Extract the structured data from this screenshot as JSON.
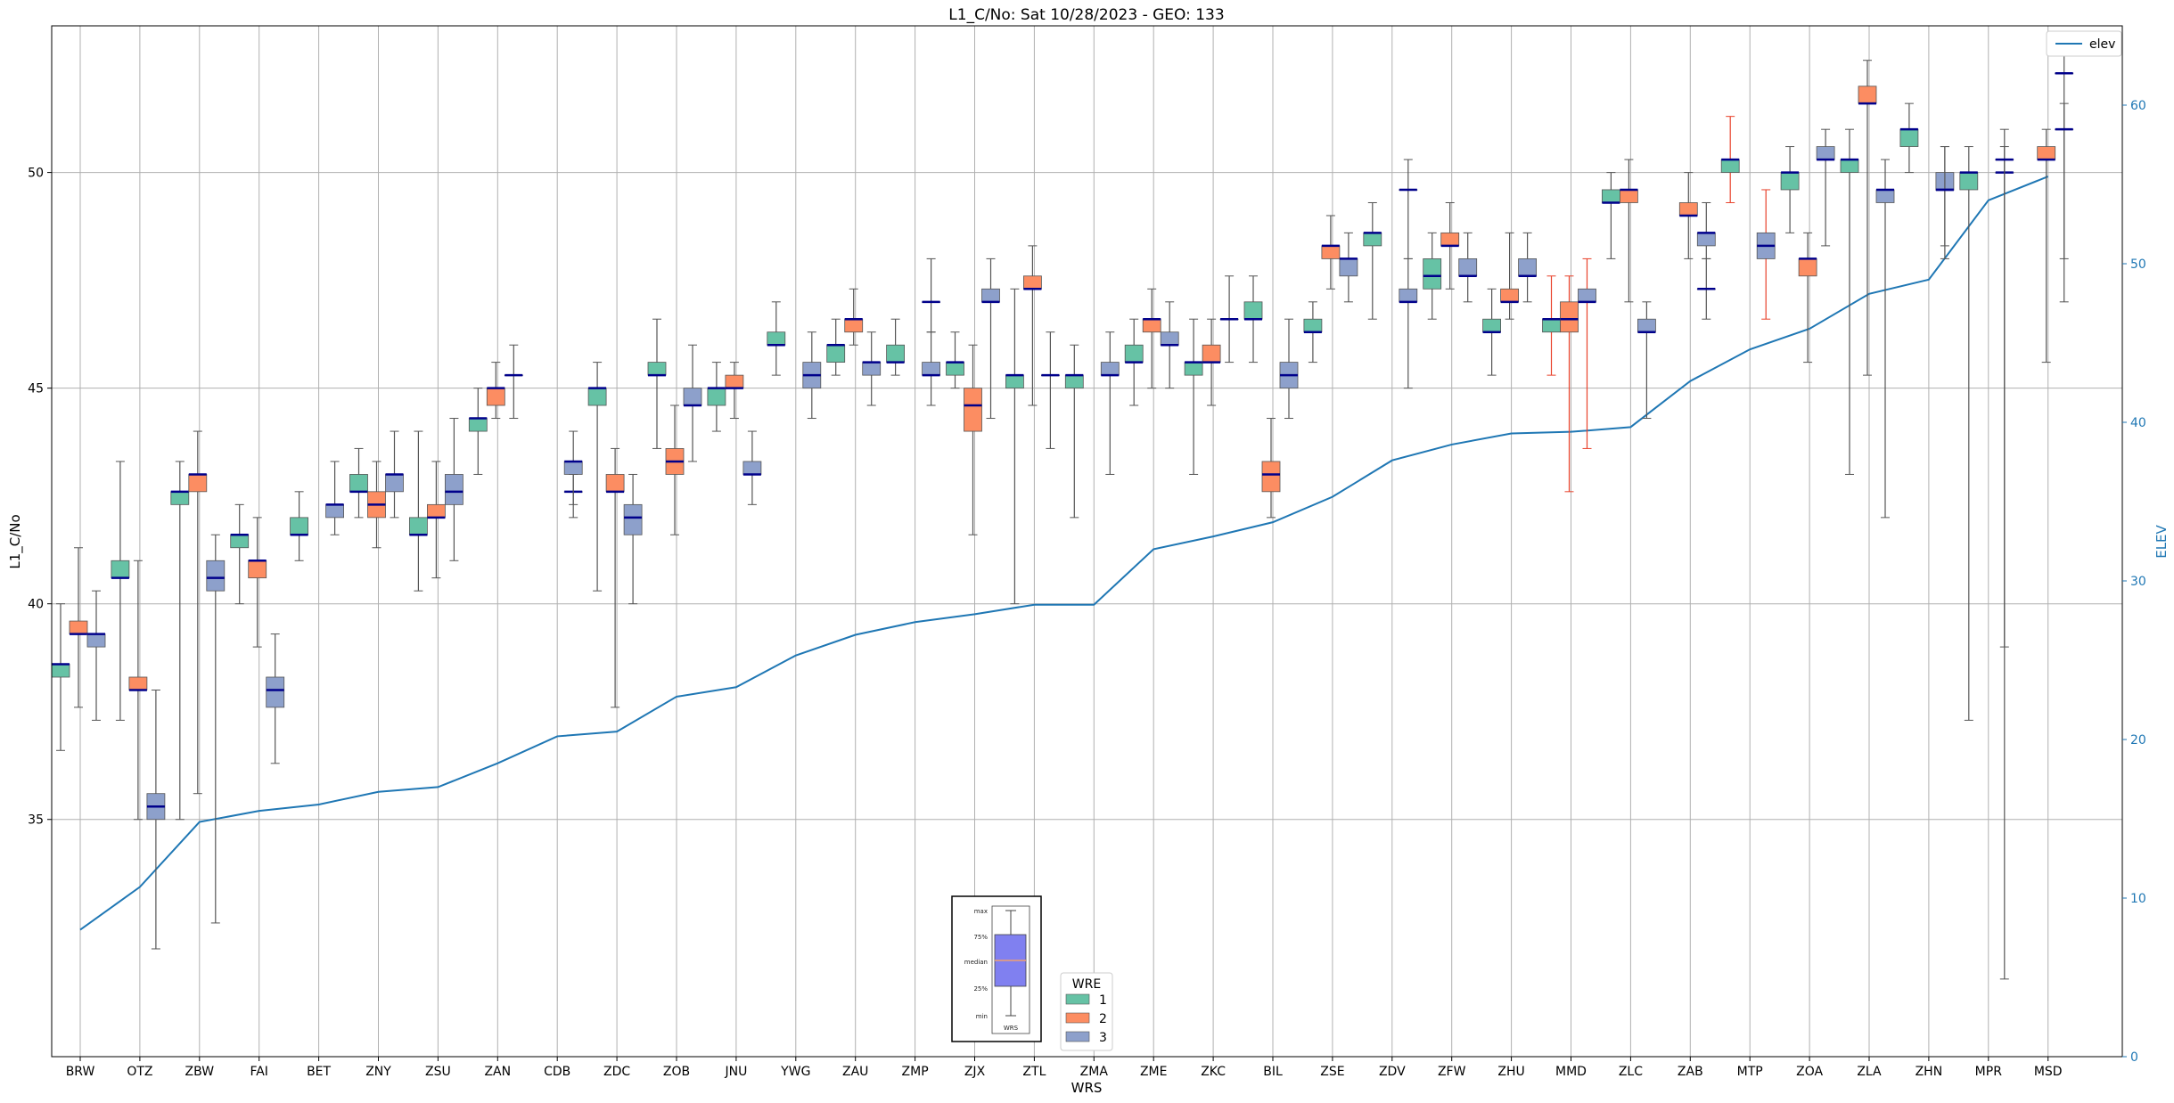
{
  "chart_data": {
    "type": "box",
    "title": "L1_C/No: Sat 10/28/2023 - GEO: 133",
    "xlabel": "WRS",
    "ylabel": "L1_C/No",
    "y2label": "ELEV",
    "ylim": [
      29.5,
      53.4
    ],
    "y2lim": [
      0,
      65
    ],
    "yticks": [
      35,
      40,
      45,
      50
    ],
    "y2ticks": [
      0,
      10,
      20,
      30,
      40,
      50,
      60
    ],
    "grid": true,
    "categories": [
      "BRW",
      "OTZ",
      "ZBW",
      "FAI",
      "BET",
      "ZNY",
      "ZSU",
      "ZAN",
      "CDB",
      "ZDC",
      "ZOB",
      "JNU",
      "YWG",
      "ZAU",
      "ZMP",
      "ZJX",
      "ZTL",
      "ZMA",
      "ZME",
      "ZKC",
      "BIL",
      "ZSE",
      "ZDV",
      "ZFW",
      "ZHU",
      "MMD",
      "ZLC",
      "ZAB",
      "MTP",
      "ZOA",
      "ZLA",
      "ZHN",
      "MPR",
      "MSD"
    ],
    "colors": {
      "1": "#66c2a5",
      "2": "#fc8d62",
      "3": "#8da0cb",
      "median": "#00008b",
      "elev": "#1f77b4",
      "whisker": "#555555",
      "alert_whisker": "#e8412a"
    },
    "legend": {
      "title": "WRE",
      "entries": [
        "1",
        "2",
        "3"
      ],
      "position": "bottom-center"
    },
    "elev_legend": {
      "label": "elev",
      "position": "top-right"
    },
    "box_key_labels": [
      "max",
      "75%",
      "median",
      "25%",
      "min",
      "WRS"
    ],
    "series": [
      {
        "wre": "1",
        "boxes": [
          {
            "cat": 0,
            "min": 36.6,
            "q1": 38.3,
            "median": 38.6,
            "q3": 38.6,
            "max": 40.0
          },
          {
            "cat": 1,
            "min": 37.3,
            "q1": 40.6,
            "median": 40.6,
            "q3": 41.0,
            "max": 43.3
          },
          {
            "cat": 2,
            "min": 35.0,
            "q1": 42.3,
            "median": 42.6,
            "q3": 42.6,
            "max": 43.3
          },
          {
            "cat": 3,
            "min": 40.0,
            "q1": 41.3,
            "median": 41.6,
            "q3": 41.6,
            "max": 42.3
          },
          {
            "cat": 4,
            "min": 41.0,
            "q1": 41.6,
            "median": 41.6,
            "q3": 42.0,
            "max": 42.6
          },
          {
            "cat": 5,
            "min": 42.0,
            "q1": 42.6,
            "median": 42.6,
            "q3": 43.0,
            "max": 43.6
          },
          {
            "cat": 6,
            "min": 40.3,
            "q1": 41.6,
            "median": 41.6,
            "q3": 42.0,
            "max": 44.0
          },
          {
            "cat": 7,
            "min": 43.0,
            "q1": 44.0,
            "median": 44.3,
            "q3": 44.3,
            "max": 45.0
          },
          {
            "cat": 9,
            "min": 40.3,
            "q1": 44.6,
            "median": 45.0,
            "q3": 45.0,
            "max": 45.6
          },
          {
            "cat": 10,
            "min": 43.6,
            "q1": 45.3,
            "median": 45.3,
            "q3": 45.6,
            "max": 46.6
          },
          {
            "cat": 11,
            "min": 44.0,
            "q1": 44.6,
            "median": 45.0,
            "q3": 45.0,
            "max": 45.6
          },
          {
            "cat": 12,
            "min": 45.3,
            "q1": 46.0,
            "median": 46.0,
            "q3": 46.3,
            "max": 47.0
          },
          {
            "cat": 13,
            "min": 45.3,
            "q1": 45.6,
            "median": 46.0,
            "q3": 46.0,
            "max": 46.6
          },
          {
            "cat": 14,
            "min": 45.3,
            "q1": 45.6,
            "median": 45.6,
            "q3": 46.0,
            "max": 46.6
          },
          {
            "cat": 15,
            "min": 45.0,
            "q1": 45.3,
            "median": 45.6,
            "q3": 45.6,
            "max": 46.3
          },
          {
            "cat": 16,
            "min": 40.0,
            "q1": 45.0,
            "median": 45.3,
            "q3": 45.3,
            "max": 47.3
          },
          {
            "cat": 17,
            "min": 42.0,
            "q1": 45.0,
            "median": 45.3,
            "q3": 45.3,
            "max": 46.0
          },
          {
            "cat": 18,
            "min": 44.6,
            "q1": 45.6,
            "median": 45.6,
            "q3": 46.0,
            "max": 46.6
          },
          {
            "cat": 19,
            "min": 43.0,
            "q1": 45.3,
            "median": 45.6,
            "q3": 45.6,
            "max": 46.6
          },
          {
            "cat": 20,
            "min": 45.6,
            "q1": 46.6,
            "median": 46.6,
            "q3": 47.0,
            "max": 47.6
          },
          {
            "cat": 21,
            "min": 45.6,
            "q1": 46.3,
            "median": 46.3,
            "q3": 46.6,
            "max": 47.0
          },
          {
            "cat": 22,
            "min": 46.6,
            "q1": 48.3,
            "median": 48.6,
            "q3": 48.6,
            "max": 49.3
          },
          {
            "cat": 23,
            "min": 46.6,
            "q1": 47.3,
            "median": 47.6,
            "q3": 48.0,
            "max": 48.6
          },
          {
            "cat": 24,
            "min": 45.3,
            "q1": 46.3,
            "median": 46.3,
            "q3": 46.6,
            "max": 47.3
          },
          {
            "cat": 25,
            "min": 45.3,
            "q1": 46.3,
            "median": 46.6,
            "q3": 46.6,
            "max": 47.6,
            "alert": true
          },
          {
            "cat": 26,
            "min": 48.0,
            "q1": 49.3,
            "median": 49.3,
            "q3": 49.6,
            "max": 50.0
          },
          {
            "cat": 29,
            "min": 48.6,
            "q1": 49.6,
            "median": 50.0,
            "q3": 50.0,
            "max": 50.6
          },
          {
            "cat": 30,
            "min": 43.0,
            "q1": 50.0,
            "median": 50.3,
            "q3": 50.3,
            "max": 51.0
          },
          {
            "cat": 31,
            "min": 50.0,
            "q1": 50.6,
            "median": 51.0,
            "q3": 51.0,
            "max": 51.6
          },
          {
            "cat": 32,
            "min": 37.3,
            "q1": 49.6,
            "median": 50.0,
            "q3": 50.0,
            "max": 50.6
          },
          {
            "cat": 28,
            "min": 49.3,
            "q1": 50.0,
            "median": 50.3,
            "q3": 50.3,
            "max": 51.3,
            "alert": true
          }
        ]
      },
      {
        "wre": "2",
        "boxes": [
          {
            "cat": 0,
            "min": 37.6,
            "q1": 39.3,
            "median": 39.3,
            "q3": 39.6,
            "max": 41.3
          },
          {
            "cat": 1,
            "min": 35.0,
            "q1": 38.0,
            "median": 38.0,
            "q3": 38.3,
            "max": 41.0
          },
          {
            "cat": 2,
            "min": 35.6,
            "q1": 42.6,
            "median": 43.0,
            "q3": 43.0,
            "max": 44.0
          },
          {
            "cat": 3,
            "min": 39.0,
            "q1": 40.6,
            "median": 41.0,
            "q3": 41.0,
            "max": 42.0
          },
          {
            "cat": 5,
            "min": 41.3,
            "q1": 42.0,
            "median": 42.3,
            "q3": 42.6,
            "max": 43.3
          },
          {
            "cat": 6,
            "min": 40.6,
            "q1": 42.0,
            "median": 42.0,
            "q3": 42.3,
            "max": 43.3
          },
          {
            "cat": 7,
            "min": 44.3,
            "q1": 44.6,
            "median": 45.0,
            "q3": 45.0,
            "max": 45.6
          },
          {
            "cat": 9,
            "min": 37.6,
            "q1": 42.6,
            "median": 42.6,
            "q3": 43.0,
            "max": 43.6
          },
          {
            "cat": 10,
            "min": 41.6,
            "q1": 43.0,
            "median": 43.3,
            "q3": 43.6,
            "max": 44.6
          },
          {
            "cat": 11,
            "min": 44.3,
            "q1": 45.0,
            "median": 45.0,
            "q3": 45.3,
            "max": 45.6
          },
          {
            "cat": 13,
            "min": 46.0,
            "q1": 46.3,
            "median": 46.6,
            "q3": 46.6,
            "max": 47.3
          },
          {
            "cat": 15,
            "min": 41.6,
            "q1": 44.0,
            "median": 44.6,
            "q3": 45.0,
            "max": 46.0
          },
          {
            "cat": 16,
            "min": 44.6,
            "q1": 47.3,
            "median": 47.3,
            "q3": 47.6,
            "max": 48.3
          },
          {
            "cat": 18,
            "min": 45.0,
            "q1": 46.3,
            "median": 46.6,
            "q3": 46.6,
            "max": 47.3
          },
          {
            "cat": 19,
            "min": 44.6,
            "q1": 45.6,
            "median": 45.6,
            "q3": 46.0,
            "max": 46.6
          },
          {
            "cat": 20,
            "min": 42.0,
            "q1": 42.6,
            "median": 43.0,
            "q3": 43.3,
            "max": 44.3
          },
          {
            "cat": 21,
            "min": 47.3,
            "q1": 48.0,
            "median": 48.3,
            "q3": 48.3,
            "max": 49.0
          },
          {
            "cat": 23,
            "min": 47.3,
            "q1": 48.3,
            "median": 48.3,
            "q3": 48.6,
            "max": 49.3
          },
          {
            "cat": 24,
            "min": 46.6,
            "q1": 47.0,
            "median": 47.0,
            "q3": 47.3,
            "max": 48.6
          },
          {
            "cat": 25,
            "min": 42.6,
            "q1": 46.3,
            "median": 46.6,
            "q3": 47.0,
            "max": 47.6,
            "alert": true
          },
          {
            "cat": 26,
            "min": 47.0,
            "q1": 49.3,
            "median": 49.6,
            "q3": 49.6,
            "max": 50.3
          },
          {
            "cat": 27,
            "min": 48.0,
            "q1": 49.0,
            "median": 49.0,
            "q3": 49.3,
            "max": 50.0
          },
          {
            "cat": 29,
            "min": 45.6,
            "q1": 47.6,
            "median": 48.0,
            "q3": 48.0,
            "max": 48.6
          },
          {
            "cat": 30,
            "min": 45.3,
            "q1": 51.6,
            "median": 51.6,
            "q3": 52.0,
            "max": 52.6
          },
          {
            "cat": 33,
            "min": 45.6,
            "q1": 50.3,
            "median": 50.3,
            "q3": 50.6,
            "max": 51.0
          }
        ]
      },
      {
        "wre": "3",
        "boxes": [
          {
            "cat": 0,
            "min": 37.3,
            "q1": 39.0,
            "median": 39.3,
            "q3": 39.3,
            "max": 40.3
          },
          {
            "cat": 1,
            "min": 32.0,
            "q1": 35.0,
            "median": 35.3,
            "q3": 35.6,
            "max": 38.0
          },
          {
            "cat": 2,
            "min": 32.6,
            "q1": 40.3,
            "median": 40.6,
            "q3": 41.0,
            "max": 41.6
          },
          {
            "cat": 3,
            "min": 36.3,
            "q1": 37.6,
            "median": 38.0,
            "q3": 38.3,
            "max": 39.3
          },
          {
            "cat": 4,
            "min": 41.6,
            "q1": 42.0,
            "median": 42.3,
            "q3": 42.3,
            "max": 43.3
          },
          {
            "cat": 5,
            "min": 42.0,
            "q1": 42.6,
            "median": 43.0,
            "q3": 43.0,
            "max": 44.0
          },
          {
            "cat": 6,
            "min": 41.0,
            "q1": 42.3,
            "median": 42.6,
            "q3": 43.0,
            "max": 44.3
          },
          {
            "cat": 7,
            "min": 44.3,
            "q1": 45.3,
            "median": 45.3,
            "q3": 45.3,
            "max": 46.0
          },
          {
            "cat": 8,
            "min": 42.0,
            "q1": 42.6,
            "median": 42.6,
            "q3": 42.6,
            "max": 43.0
          },
          {
            "cat": 8,
            "min": 42.3,
            "q1": 43.0,
            "median": 43.3,
            "q3": 43.3,
            "max": 44.0
          },
          {
            "cat": 9,
            "min": 40.0,
            "q1": 41.6,
            "median": 42.0,
            "q3": 42.3,
            "max": 43.0
          },
          {
            "cat": 10,
            "min": 43.3,
            "q1": 44.6,
            "median": 44.6,
            "q3": 45.0,
            "max": 46.0
          },
          {
            "cat": 11,
            "min": 42.3,
            "q1": 43.0,
            "median": 43.0,
            "q3": 43.3,
            "max": 44.0
          },
          {
            "cat": 12,
            "min": 44.3,
            "q1": 45.0,
            "median": 45.3,
            "q3": 45.6,
            "max": 46.3
          },
          {
            "cat": 13,
            "min": 44.6,
            "q1": 45.3,
            "median": 45.6,
            "q3": 45.6,
            "max": 46.3
          },
          {
            "cat": 14,
            "min": 46.3,
            "q1": 47.0,
            "median": 47.0,
            "q3": 47.0,
            "max": 48.0
          },
          {
            "cat": 14,
            "min": 44.6,
            "q1": 45.3,
            "median": 45.3,
            "q3": 45.6,
            "max": 46.3
          },
          {
            "cat": 15,
            "min": 44.3,
            "q1": 47.0,
            "median": 47.0,
            "q3": 47.3,
            "max": 48.0
          },
          {
            "cat": 16,
            "min": 43.6,
            "q1": 45.3,
            "median": 45.3,
            "q3": 45.3,
            "max": 46.3
          },
          {
            "cat": 17,
            "min": 43.0,
            "q1": 45.3,
            "median": 45.3,
            "q3": 45.6,
            "max": 46.3
          },
          {
            "cat": 18,
            "min": 45.0,
            "q1": 46.0,
            "median": 46.0,
            "q3": 46.3,
            "max": 47.0
          },
          {
            "cat": 19,
            "min": 45.6,
            "q1": 46.6,
            "median": 46.6,
            "q3": 46.6,
            "max": 47.6
          },
          {
            "cat": 20,
            "min": 44.3,
            "q1": 45.0,
            "median": 45.3,
            "q3": 45.6,
            "max": 46.6
          },
          {
            "cat": 21,
            "min": 47.0,
            "q1": 47.6,
            "median": 48.0,
            "q3": 48.0,
            "max": 48.6
          },
          {
            "cat": 22,
            "min": 48.0,
            "q1": 49.6,
            "median": 49.6,
            "q3": 49.6,
            "max": 50.3
          },
          {
            "cat": 22,
            "min": 45.0,
            "q1": 47.0,
            "median": 47.0,
            "q3": 47.3,
            "max": 48.0
          },
          {
            "cat": 23,
            "min": 47.0,
            "q1": 47.6,
            "median": 47.6,
            "q3": 48.0,
            "max": 48.6
          },
          {
            "cat": 24,
            "min": 47.0,
            "q1": 47.6,
            "median": 47.6,
            "q3": 48.0,
            "max": 48.6
          },
          {
            "cat": 25,
            "min": 43.6,
            "q1": 47.0,
            "median": 47.0,
            "q3": 47.3,
            "max": 48.0,
            "alert": true
          },
          {
            "cat": 26,
            "min": 44.3,
            "q1": 46.3,
            "median": 46.3,
            "q3": 46.6,
            "max": 47.0
          },
          {
            "cat": 27,
            "min": 46.6,
            "q1": 47.3,
            "median": 47.3,
            "q3": 47.3,
            "max": 48.0
          },
          {
            "cat": 27,
            "min": 48.0,
            "q1": 48.3,
            "median": 48.6,
            "q3": 48.6,
            "max": 49.3
          },
          {
            "cat": 28,
            "min": 46.6,
            "q1": 48.0,
            "median": 48.3,
            "q3": 48.6,
            "max": 49.6,
            "alert": true
          },
          {
            "cat": 29,
            "min": 48.3,
            "q1": 50.3,
            "median": 50.3,
            "q3": 50.6,
            "max": 51.0
          },
          {
            "cat": 30,
            "min": 42.0,
            "q1": 49.3,
            "median": 49.6,
            "q3": 49.6,
            "max": 50.3
          },
          {
            "cat": 31,
            "min": 48.3,
            "q1": 49.6,
            "median": 49.6,
            "q3": 50.0,
            "max": 50.6
          },
          {
            "cat": 31,
            "min": 48.0,
            "q1": 49.6,
            "median": 49.6,
            "q3": 49.6,
            "max": 50.6
          },
          {
            "cat": 32,
            "min": 39.0,
            "q1": 50.0,
            "median": 50.0,
            "q3": 50.0,
            "max": 50.6
          },
          {
            "cat": 32,
            "min": 31.3,
            "q1": 50.3,
            "median": 50.3,
            "q3": 50.3,
            "max": 51.0
          },
          {
            "cat": 33,
            "min": 48.0,
            "q1": 52.3,
            "median": 52.3,
            "q3": 52.3,
            "max": 53.0
          },
          {
            "cat": 33,
            "min": 47.0,
            "q1": 51.0,
            "median": 51.0,
            "q3": 51.0,
            "max": 51.6
          }
        ]
      }
    ],
    "elev": {
      "name": "elev",
      "x": [
        0,
        1,
        2,
        3,
        4,
        5,
        6,
        7,
        8,
        9,
        10,
        11,
        12,
        13,
        14,
        15,
        16,
        17,
        18,
        19,
        20,
        21,
        22,
        23,
        24,
        25,
        26,
        27,
        28,
        29,
        30,
        31,
        32,
        33
      ],
      "values": [
        8.0,
        10.7,
        14.8,
        15.5,
        15.9,
        16.7,
        17.0,
        18.5,
        20.2,
        20.5,
        22.7,
        23.3,
        25.3,
        26.6,
        27.4,
        27.9,
        28.5,
        28.5,
        32.0,
        32.8,
        33.7,
        35.3,
        37.6,
        38.6,
        39.3,
        39.4,
        39.7,
        42.6,
        44.6,
        45.9,
        48.1,
        49.0,
        54.0,
        55.5
      ]
    }
  }
}
